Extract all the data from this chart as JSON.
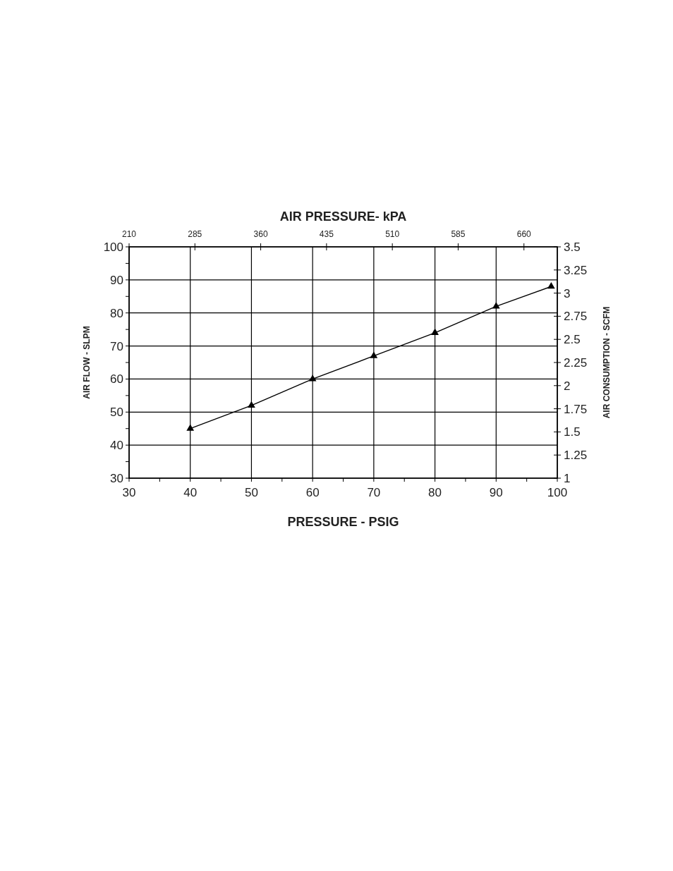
{
  "chart_data": {
    "type": "line",
    "xlabel": "PRESSURE - PSIG",
    "ylabel": "AIR FLOW - SLPM",
    "y2label": "AIR CONSUMPTION - SCFM",
    "x2label": "AIR PRESSURE- kPA",
    "x": [
      40,
      50,
      60,
      70,
      80,
      90,
      99
    ],
    "series": [
      {
        "color": "#000000",
        "values": [
          45,
          52,
          60,
          67,
          74,
          82,
          88
        ]
      }
    ],
    "xlim": [
      30,
      100
    ],
    "xticks": [
      30,
      {
        "value": 35,
        "label": null
      },
      40,
      {
        "value": 45,
        "label": null
      },
      50,
      {
        "value": 55,
        "label": null
      },
      60,
      {
        "value": 65,
        "label": null
      },
      70,
      {
        "value": 75,
        "label": null
      },
      80,
      {
        "value": 85,
        "label": null
      },
      90,
      {
        "value": 95,
        "label": null
      },
      100
    ],
    "ylim": [
      30,
      100
    ],
    "yticks": [
      30,
      {
        "value": 35,
        "label": null
      },
      40,
      {
        "value": 45,
        "label": null
      },
      50,
      {
        "value": 55,
        "label": null
      },
      60,
      {
        "value": 65,
        "label": null
      },
      70,
      {
        "value": 75,
        "label": null
      },
      80,
      {
        "value": 85,
        "label": null
      },
      90,
      {
        "value": 95,
        "label": null
      },
      100
    ],
    "y2lim": [
      1,
      3.5
    ],
    "y2ticks": [
      1,
      1.25,
      1.5,
      1.75,
      2,
      2.25,
      2.5,
      2.75,
      3,
      3.25,
      3.5
    ],
    "x2lim": [
      210,
      698
    ],
    "x2ticks": [
      210,
      285,
      360,
      435,
      510,
      585,
      660
    ],
    "grid": true,
    "marker": "triangle",
    "line_style": "solid"
  }
}
